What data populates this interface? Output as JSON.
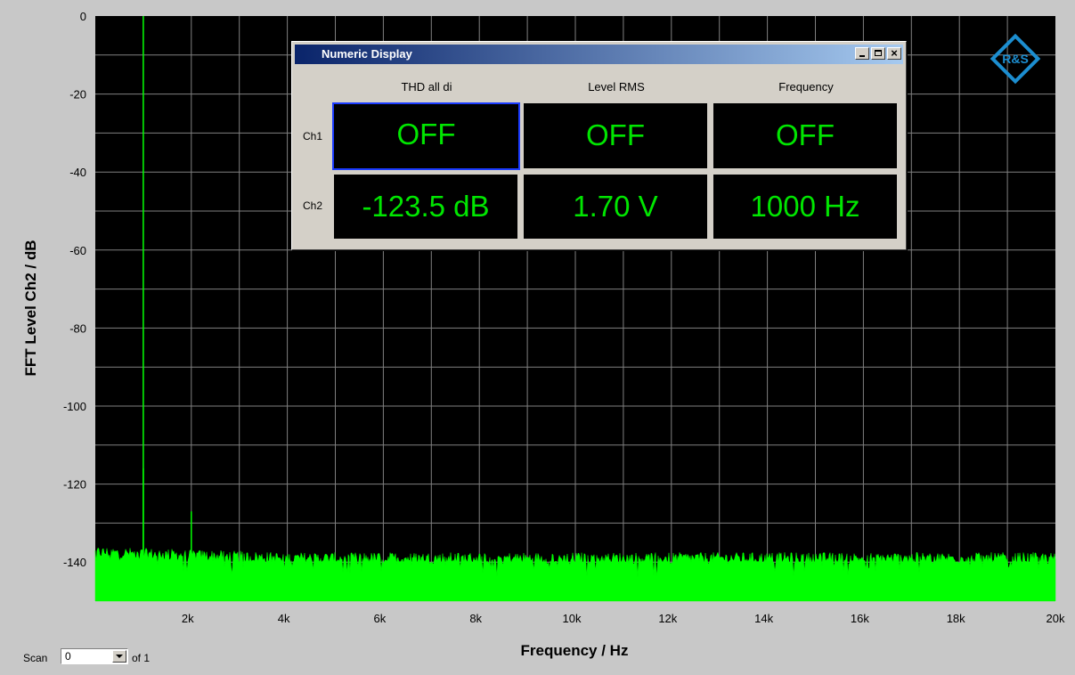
{
  "chart_data": {
    "type": "area",
    "xlabel": "Frequency / Hz",
    "ylabel": "FFT Level Ch2 / dB",
    "xlim": [
      0,
      20000
    ],
    "ylim": [
      -150,
      0
    ],
    "x_ticks": [
      {
        "v": 2000,
        "label": "2k"
      },
      {
        "v": 4000,
        "label": "4k"
      },
      {
        "v": 6000,
        "label": "6k"
      },
      {
        "v": 8000,
        "label": "8k"
      },
      {
        "v": 10000,
        "label": "10k"
      },
      {
        "v": 12000,
        "label": "12k"
      },
      {
        "v": 14000,
        "label": "14k"
      },
      {
        "v": 16000,
        "label": "16k"
      },
      {
        "v": 18000,
        "label": "18k"
      },
      {
        "v": 20000,
        "label": "20k"
      }
    ],
    "y_ticks": [
      {
        "v": 0,
        "label": "0"
      },
      {
        "v": -20,
        "label": "-20"
      },
      {
        "v": -40,
        "label": "-40"
      },
      {
        "v": -60,
        "label": "-60"
      },
      {
        "v": -80,
        "label": "-80"
      },
      {
        "v": -100,
        "label": "-100"
      },
      {
        "v": -120,
        "label": "-120"
      },
      {
        "v": -140,
        "label": "-140"
      }
    ],
    "grid": true,
    "background": "#000000",
    "grid_color": "#808080",
    "series": [
      {
        "color": "#00ff00",
        "noise_floor_db": -140,
        "peaks": [
          {
            "x": 1000,
            "y": 0
          },
          {
            "x": 2000,
            "y": -127
          },
          {
            "x": 1000,
            "y": -116
          }
        ]
      }
    ]
  },
  "numeric_display": {
    "title": "Numeric Display",
    "columns": [
      "THD all di",
      "Level RMS",
      "Frequency"
    ],
    "rows": [
      {
        "label": "Ch1",
        "values": [
          "OFF",
          "OFF",
          "OFF"
        ]
      },
      {
        "label": "Ch2",
        "values": [
          "-123.5 dB",
          "1.70 V",
          "1000 Hz"
        ]
      }
    ],
    "value_color": "#00e600",
    "close_glyph": "×"
  },
  "scan": {
    "label": "Scan",
    "value": "0",
    "of_text": "of 1"
  },
  "logo": {
    "text": "R&S",
    "color": "#1c8ed0"
  }
}
